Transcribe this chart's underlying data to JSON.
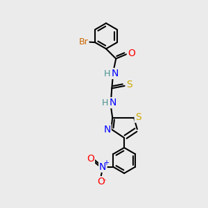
{
  "bg_color": "#ebebeb",
  "atom_colors": {
    "C": "#000000",
    "H": "#4a9090",
    "N": "#0000ff",
    "O": "#ff0000",
    "S": "#ccaa00",
    "Br": "#cc6600"
  },
  "bond_color": "#000000",
  "bond_width": 1.5,
  "font_size": 9,
  "figsize": [
    3.0,
    3.0
  ],
  "dpi": 100,
  "xlim": [
    0,
    10
  ],
  "ylim": [
    0,
    10
  ]
}
